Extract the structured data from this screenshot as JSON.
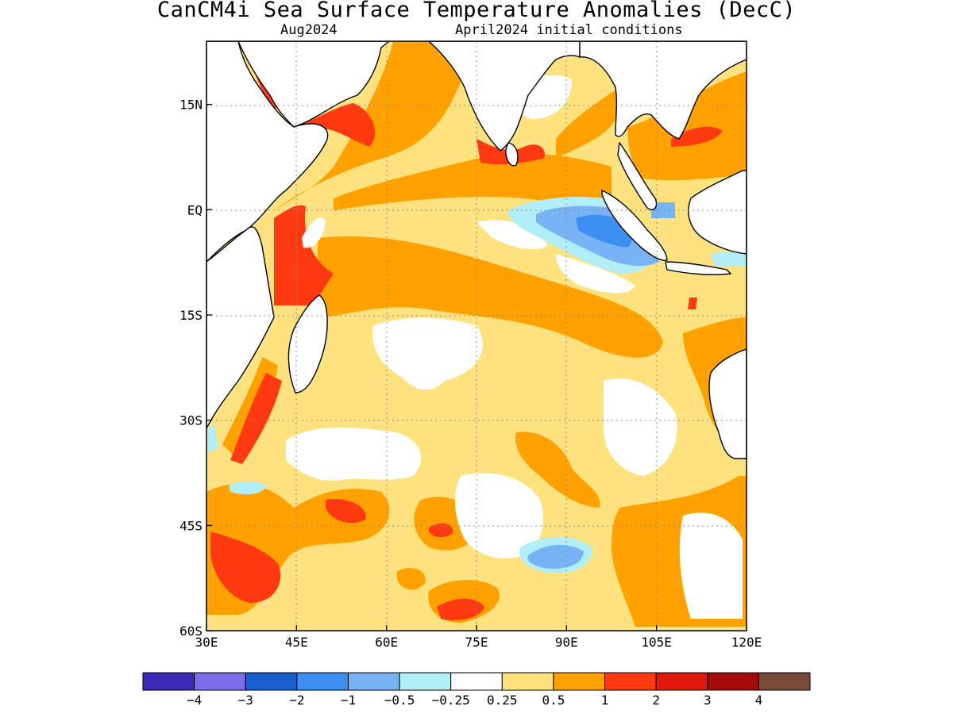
{
  "title": "CanCM4i Sea Surface Temperature Anomalies (DecC)",
  "subtitle_left": "Aug2024",
  "subtitle_right": "April2024 initial conditions",
  "map": {
    "lon_range": [
      30,
      120
    ],
    "lat_range": [
      -60,
      24
    ],
    "lon_ticks": [
      {
        "value": 30,
        "label": "30E"
      },
      {
        "value": 45,
        "label": "45E"
      },
      {
        "value": 60,
        "label": "60E"
      },
      {
        "value": 75,
        "label": "75E"
      },
      {
        "value": 90,
        "label": "90E"
      },
      {
        "value": 105,
        "label": "105E"
      },
      {
        "value": 120,
        "label": "120E"
      }
    ],
    "lat_ticks": [
      {
        "value": 15,
        "label": "15N"
      },
      {
        "value": 0,
        "label": "EQ"
      },
      {
        "value": -15,
        "label": "15S"
      },
      {
        "value": -30,
        "label": "30S"
      },
      {
        "value": -45,
        "label": "45S"
      },
      {
        "value": -60,
        "label": "60S"
      }
    ],
    "grid": "dotted"
  },
  "colorbar": {
    "colors": [
      "#3b2ab8",
      "#7b6ee8",
      "#1a5fd0",
      "#3c8ff0",
      "#78b4f5",
      "#b2eef8",
      "#ffffff",
      "#ffe280",
      "#ffa200",
      "#ff3a10",
      "#e01a0a",
      "#a50a0a",
      "#7a4a3a"
    ],
    "labels": [
      "-4",
      "-3",
      "-2",
      "-1",
      "-0.5",
      "-0.25",
      "0.25",
      "0.5",
      "1",
      "2",
      "3",
      "4"
    ]
  }
}
